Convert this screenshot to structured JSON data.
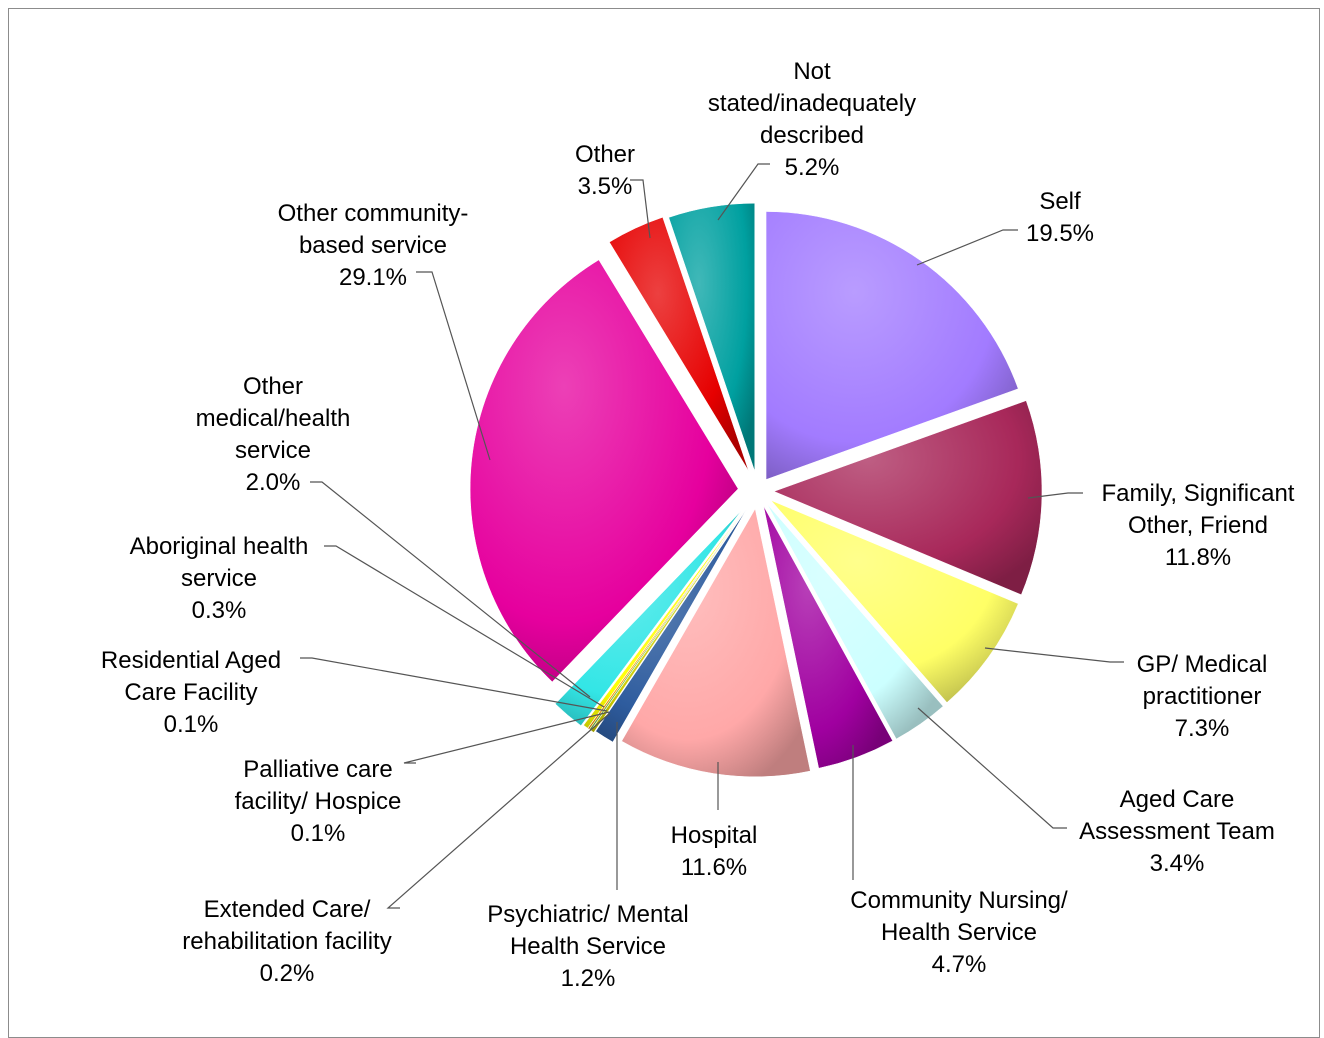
{
  "chart_data": {
    "type": "pie",
    "title": "",
    "legend": "none",
    "slices": [
      {
        "label_lines": [
          "Self",
          "19.5%"
        ],
        "value": 19.5,
        "color": "#A27BFF"
      },
      {
        "label_lines": [
          "Family, Significant",
          "Other, Friend",
          "11.8%"
        ],
        "value": 11.8,
        "color": "#A8285A"
      },
      {
        "label_lines": [
          "GP/ Medical",
          "practitioner",
          "7.3%"
        ],
        "value": 7.3,
        "color": "#FFFF66"
      },
      {
        "label_lines": [
          "Aged Care",
          "Assessment Team",
          "3.4%"
        ],
        "value": 3.4,
        "color": "#CCFFFF"
      },
      {
        "label_lines": [
          "Community Nursing/",
          "Health Service",
          "4.7%"
        ],
        "value": 4.7,
        "color": "#A000A0"
      },
      {
        "label_lines": [
          "Hospital",
          "11.6%"
        ],
        "value": 11.6,
        "color": "#FFA8A8"
      },
      {
        "label_lines": [
          "Psychiatric/ Mental",
          "Health Service",
          "1.2%"
        ],
        "value": 1.2,
        "color": "#2E5C9E"
      },
      {
        "label_lines": [
          "Extended Care/",
          "rehabilitation facility",
          "0.2%"
        ],
        "value": 0.2,
        "color": "#CCCC00"
      },
      {
        "label_lines": [
          "Palliative care",
          "facility/ Hospice",
          "0.1%"
        ],
        "value": 0.1,
        "color": "#7FBF3F"
      },
      {
        "label_lines": [
          "Residential Aged",
          "Care Facility",
          "0.1%"
        ],
        "value": 0.1,
        "color": "#FF9900"
      },
      {
        "label_lines": [
          "Aboriginal health",
          "service",
          "0.3%"
        ],
        "value": 0.3,
        "color": "#FFFF00"
      },
      {
        "label_lines": [
          "Other",
          "medical/health",
          "service",
          "2.0%"
        ],
        "value": 2.0,
        "color": "#33E6E6"
      },
      {
        "label_lines": [
          "Other community-",
          "based service",
          "29.1%"
        ],
        "value": 29.1,
        "color": "#E6009E"
      },
      {
        "label_lines": [
          "Other",
          "3.5%"
        ],
        "value": 3.5,
        "color": "#E60000"
      },
      {
        "label_lines": [
          "Not",
          "stated/inadequately",
          "described",
          "5.2%"
        ],
        "value": 5.2,
        "color": "#00A0A0"
      }
    ]
  }
}
